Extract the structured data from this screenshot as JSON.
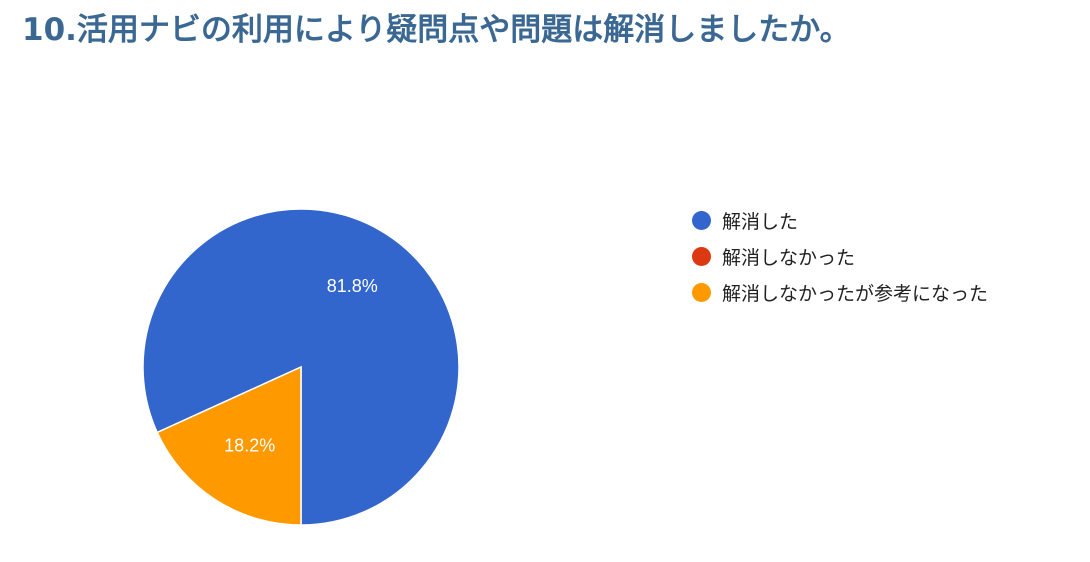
{
  "title": "10.活用ナビの利用により疑問点や問題は解消しましたか。",
  "chart_data": {
    "type": "pie",
    "title": "10.活用ナビの利用により疑問点や問題は解消しましたか。",
    "categories": [
      "解消した",
      "解消しなかった",
      "解消しなかったが参考になった"
    ],
    "values": [
      81.8,
      0,
      18.2
    ],
    "data_labels": [
      "81.8%",
      "",
      "18.2%"
    ],
    "colors": [
      "#3366cc",
      "#dc3912",
      "#ff9900"
    ],
    "legend_position": "right"
  }
}
